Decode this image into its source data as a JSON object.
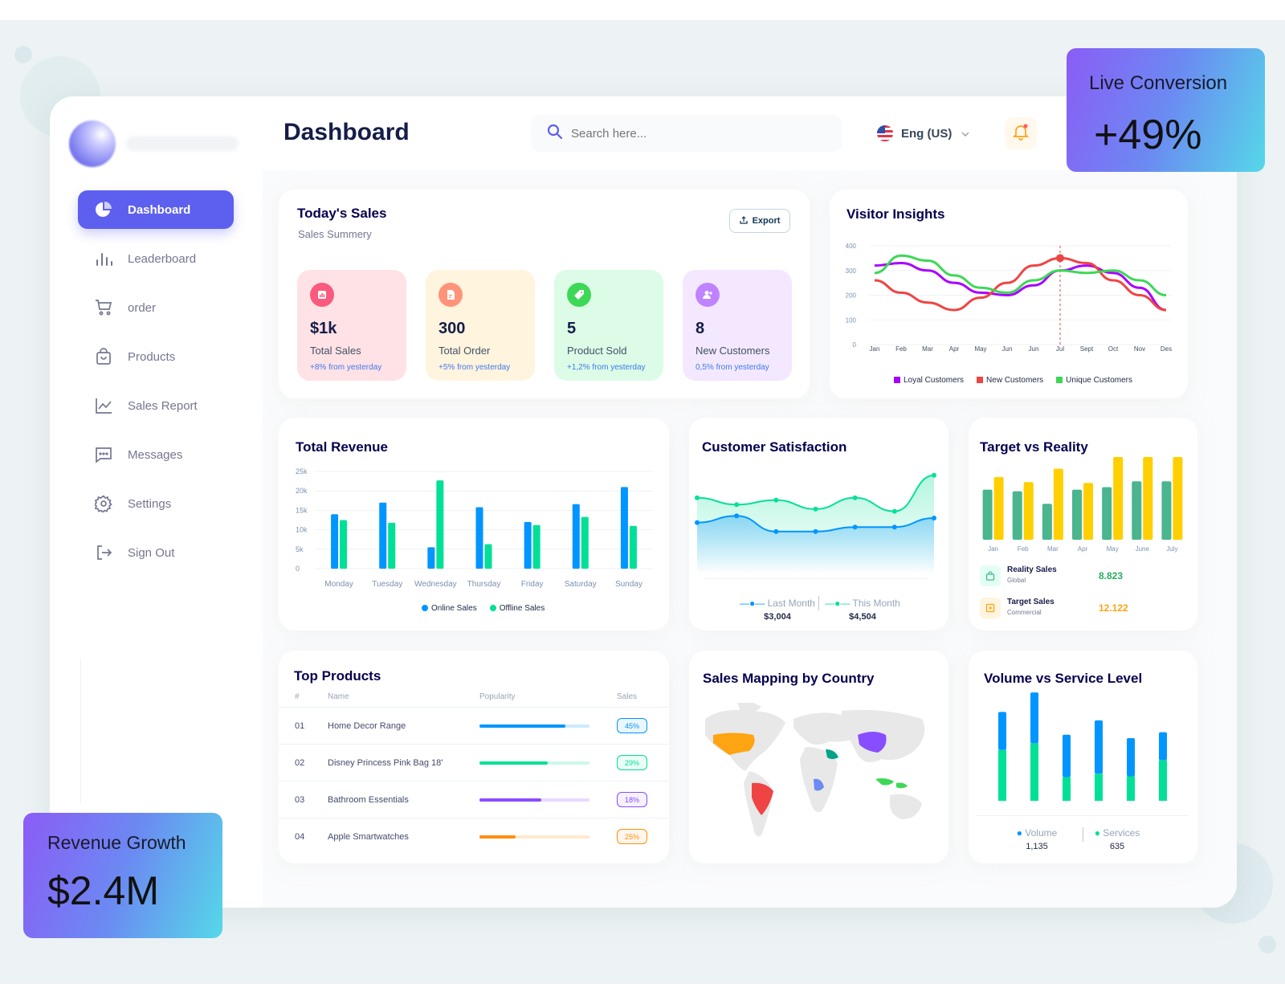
{
  "sidebar": {
    "items": [
      {
        "label": "Dashboard",
        "icon": "pie-chart-icon"
      },
      {
        "label": "Leaderboard",
        "icon": "bar-chart-icon"
      },
      {
        "label": "order",
        "icon": "cart-icon"
      },
      {
        "label": "Products",
        "icon": "shopping-bag-icon"
      },
      {
        "label": "Sales Report",
        "icon": "line-chart-icon"
      },
      {
        "label": "Messages",
        "icon": "message-icon"
      },
      {
        "label": "Settings",
        "icon": "gear-icon"
      },
      {
        "label": "Sign Out",
        "icon": "sign-out-icon"
      }
    ]
  },
  "header": {
    "title": "Dashboard",
    "search_placeholder": "Search here...",
    "language": "Eng (US)"
  },
  "todays_sales": {
    "title": "Today's Sales",
    "subtitle": "Sales Summery",
    "export_label": "Export",
    "stats": [
      {
        "value": "$1k",
        "label": "Total Sales",
        "delta": "+8% from yesterday",
        "bg": "#ffe2e5",
        "icon_bg": "#fa5a7d"
      },
      {
        "value": "300",
        "label": "Total Order",
        "delta": "+5% from yesterday",
        "bg": "#fff4de",
        "icon_bg": "#ff947a"
      },
      {
        "value": "5",
        "label": "Product Sold",
        "delta": "+1,2% from yesterday",
        "bg": "#dcfce7",
        "icon_bg": "#3cd856"
      },
      {
        "value": "8",
        "label": "New Customers",
        "delta": "0,5% from yesterday",
        "bg": "#f3e8ff",
        "icon_bg": "#bf83ff"
      }
    ]
  },
  "visitor_insights": {
    "title": "Visitor Insights",
    "legend": [
      "Loyal Customers",
      "New Customers",
      "Unique Customers"
    ]
  },
  "total_revenue": {
    "title": "Total Revenue",
    "legend": [
      "Online Sales",
      "Offline Sales"
    ]
  },
  "customer_satisfaction": {
    "title": "Customer Satisfaction",
    "last_month_label": "Last Month",
    "last_month_value": "$3,004",
    "this_month_label": "This Month",
    "this_month_value": "$4,504"
  },
  "target_vs_reality": {
    "title": "Target vs Reality",
    "rows": [
      {
        "label": "Reality Sales",
        "sub": "Global",
        "value": "8.823"
      },
      {
        "label": "Target Sales",
        "sub": "Commercial",
        "value": "12.122"
      }
    ]
  },
  "top_products": {
    "title": "Top Products",
    "headers": [
      "#",
      "Name",
      "Popularity",
      "Sales"
    ],
    "rows": [
      {
        "num": "01",
        "name": "Home Decor Range",
        "popularity": 0.78,
        "sales": "45%",
        "color": "#0095ff"
      },
      {
        "num": "02",
        "name": "Disney Princess Pink Bag 18'",
        "popularity": 0.62,
        "sales": "29%",
        "color": "#00e096"
      },
      {
        "num": "03",
        "name": "Bathroom Essentials",
        "popularity": 0.56,
        "sales": "18%",
        "color": "#884dff"
      },
      {
        "num": "04",
        "name": "Apple Smartwatches",
        "popularity": 0.33,
        "sales": "25%",
        "color": "#ff8f0d"
      }
    ]
  },
  "sales_mapping": {
    "title": "Sales Mapping by Country"
  },
  "volume_service": {
    "title": "Volume vs Service Level",
    "volume_label": "Volume",
    "volume_value": "1,135",
    "services_label": "Services",
    "services_value": "635"
  },
  "promo_live": {
    "label": "Live Conversion",
    "value": "+49%"
  },
  "promo_revenue": {
    "label": "Revenue Growth",
    "value": "$2.4M"
  },
  "colors": {
    "accent": "#5d5fef",
    "blue": "#0095ff",
    "green": "#00e096",
    "purple": "#a700ff",
    "red": "#ef4444",
    "yellow": "#ffcf00",
    "teal": "#4ab58e"
  },
  "chart_data": [
    {
      "type": "line",
      "title": "Visitor Insights",
      "categories": [
        "Jan",
        "Feb",
        "Mar",
        "Apr",
        "May",
        "Jun",
        "Jun",
        "Jul",
        "Sept",
        "Oct",
        "Nov",
        "Des"
      ],
      "yticks": [
        "0",
        "100",
        "200",
        "300",
        "400"
      ],
      "ylim": [
        0,
        400
      ],
      "series": [
        {
          "name": "Loyal Customers",
          "color": "#a700ff",
          "values": [
            320,
            330,
            300,
            250,
            210,
            200,
            240,
            300,
            320,
            290,
            230,
            140
          ]
        },
        {
          "name": "New Customers",
          "color": "#ef4444",
          "values": [
            260,
            210,
            170,
            140,
            190,
            250,
            320,
            350,
            330,
            260,
            200,
            140
          ]
        },
        {
          "name": "Unique Customers",
          "color": "#3cd856",
          "values": [
            290,
            360,
            340,
            280,
            230,
            210,
            260,
            300,
            290,
            300,
            260,
            200
          ]
        }
      ]
    },
    {
      "type": "bar",
      "title": "Total Revenue",
      "categories": [
        "Monday",
        "Tuesday",
        "Wednesday",
        "Thursday",
        "Friday",
        "Saturday",
        "Sunday"
      ],
      "yticks": [
        "0",
        "5k",
        "10k",
        "15k",
        "20k",
        "25k"
      ],
      "ylim": [
        0,
        25000
      ],
      "series": [
        {
          "name": "Online Sales",
          "color": "#0095ff",
          "values": [
            14000,
            17000,
            5500,
            15800,
            12000,
            16600,
            21000
          ]
        },
        {
          "name": "Offline Sales",
          "color": "#00e096",
          "values": [
            12500,
            11800,
            22700,
            6300,
            11200,
            13300,
            11000
          ]
        }
      ]
    },
    {
      "type": "area",
      "title": "Customer Satisfaction",
      "series": [
        {
          "name": "Last Month",
          "color": "#0095ff",
          "values": [
            2.3,
            2.6,
            1.9,
            1.9,
            2.1,
            2.1,
            2.5
          ]
        },
        {
          "name": "This Month",
          "color": "#07e098",
          "values": [
            3.4,
            3.1,
            3.3,
            2.9,
            3.4,
            2.8,
            4.4
          ]
        }
      ],
      "ylim": [
        0,
        5
      ]
    },
    {
      "type": "bar",
      "title": "Target vs Reality",
      "categories": [
        "Jan",
        "Feb",
        "Mar",
        "Apr",
        "May",
        "June",
        "July"
      ],
      "series": [
        {
          "name": "Reality Sales",
          "color": "#4ab58e",
          "values": [
            6,
            5.8,
            4.3,
            6,
            6.3,
            7,
            7
          ]
        },
        {
          "name": "Target Sales",
          "color": "#ffcf00",
          "values": [
            7.5,
            6.9,
            8.5,
            6.8,
            9.9,
            9.9,
            9.9
          ]
        }
      ],
      "ylim": [
        0,
        10
      ]
    },
    {
      "type": "bar",
      "title": "Volume vs Service Level",
      "series": [
        {
          "name": "Volume",
          "color": "#0095ff",
          "values": [
            4.5,
            6,
            5,
            6.3,
            4.5,
            3.3
          ]
        },
        {
          "name": "Services",
          "color": "#00e096",
          "values": [
            6,
            6.8,
            2.8,
            3.2,
            2.9,
            4.8
          ]
        }
      ],
      "ylim": [
        0,
        13
      ]
    }
  ]
}
